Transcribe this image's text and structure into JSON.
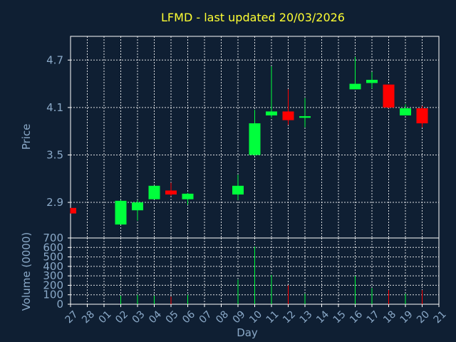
{
  "chart_data": {
    "type": "candlestick",
    "title": "LFMD - last updated 20/03/2026",
    "xlabel": "Day",
    "price_panel": {
      "ylabel": "Price",
      "ylim": [
        2.45,
        5.0
      ],
      "yticks": [
        2.9,
        3.5,
        4.1,
        4.7
      ],
      "ytick_labels": [
        "2.9",
        "3.5",
        "4.1",
        "4.7"
      ]
    },
    "volume_panel": {
      "ylabel": "Volume (0000)",
      "ylim": [
        0,
        700
      ],
      "yticks": [
        0,
        100,
        200,
        300,
        400,
        500,
        600,
        700
      ],
      "ytick_labels": [
        "0",
        "100",
        "200",
        "300",
        "400",
        "500",
        "600",
        "700"
      ]
    },
    "x_tick_labels": [
      "27",
      "28",
      "01",
      "02",
      "03",
      "04",
      "05",
      "06",
      "07",
      "08",
      "09",
      "10",
      "11",
      "12",
      "13",
      "14",
      "15",
      "16",
      "17",
      "18",
      "19",
      "20",
      "21"
    ],
    "candles": [
      {
        "i": 0,
        "open": 2.83,
        "high": 2.83,
        "low": 2.76,
        "close": 2.76,
        "volume": 0
      },
      {
        "i": 3,
        "open": 2.62,
        "high": 2.93,
        "low": 2.62,
        "close": 2.92,
        "volume": 90
      },
      {
        "i": 4,
        "open": 2.8,
        "high": 2.93,
        "low": 2.67,
        "close": 2.9,
        "volume": 100
      },
      {
        "i": 5,
        "open": 2.94,
        "high": 3.11,
        "low": 2.94,
        "close": 3.11,
        "volume": 90
      },
      {
        "i": 6,
        "open": 3.05,
        "high": 3.15,
        "low": 2.98,
        "close": 3.0,
        "volume": 80
      },
      {
        "i": 7,
        "open": 2.94,
        "high": 3.02,
        "low": 2.87,
        "close": 3.01,
        "volume": 100
      },
      {
        "i": 10,
        "open": 3.0,
        "high": 3.25,
        "low": 2.93,
        "close": 3.11,
        "volume": 260
      },
      {
        "i": 11,
        "open": 3.5,
        "high": 4.07,
        "low": 3.49,
        "close": 3.9,
        "volume": 610
      },
      {
        "i": 12,
        "open": 4.0,
        "high": 4.62,
        "low": 3.97,
        "close": 4.05,
        "volume": 310
      },
      {
        "i": 13,
        "open": 4.05,
        "high": 4.33,
        "low": 3.88,
        "close": 3.94,
        "volume": 200
      },
      {
        "i": 14,
        "open": 3.97,
        "high": 4.22,
        "low": 3.85,
        "close": 3.99,
        "volume": 110
      },
      {
        "i": 17,
        "open": 4.33,
        "high": 4.74,
        "low": 4.33,
        "close": 4.4,
        "volume": 300
      },
      {
        "i": 18,
        "open": 4.41,
        "high": 4.55,
        "low": 4.34,
        "close": 4.45,
        "volume": 170
      },
      {
        "i": 19,
        "open": 4.39,
        "high": 4.39,
        "low": 4.09,
        "close": 4.1,
        "volume": 150
      },
      {
        "i": 20,
        "open": 4.0,
        "high": 4.14,
        "low": 4.0,
        "close": 4.09,
        "volume": 110
      },
      {
        "i": 21,
        "open": 4.09,
        "high": 4.12,
        "low": 3.85,
        "close": 3.9,
        "volume": 150
      }
    ],
    "colors": {
      "up": "#00ff3c",
      "down": "#ff0000",
      "background": "#0f1f33",
      "axis_text": "#8aa9c8",
      "title": "#ffff33",
      "frame": "#ffffff"
    }
  }
}
